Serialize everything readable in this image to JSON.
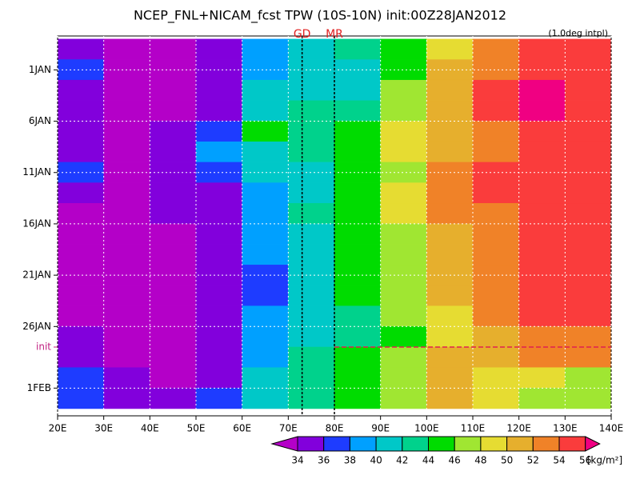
{
  "chart_data": {
    "type": "heatmap",
    "title": "NCEP_FNL+NICAM_fcst TPW (10S-10N) init:00Z28JAN2012",
    "subtitle": "(1.0deg intpl)",
    "x": [
      25,
      35,
      45,
      55,
      65,
      75,
      85,
      95,
      105,
      115,
      125,
      135
    ],
    "y": [
      -2,
      0,
      2,
      4,
      6,
      8,
      10,
      12,
      14,
      16,
      18,
      20,
      22,
      24,
      26,
      28,
      30,
      32
    ],
    "values": [
      [
        35,
        33,
        33,
        34,
        38,
        40,
        42,
        44,
        49,
        52,
        54,
        55
      ],
      [
        37,
        33,
        33,
        35,
        39,
        41,
        40,
        45,
        50,
        53,
        55,
        55
      ],
      [
        35,
        33,
        33,
        35,
        40,
        41,
        41,
        46,
        51,
        54,
        56,
        55
      ],
      [
        34,
        33,
        33,
        35,
        40,
        42,
        42,
        47,
        51,
        54,
        56,
        55
      ],
      [
        34,
        33,
        34,
        37,
        44,
        42,
        44,
        48,
        51,
        53,
        55,
        54
      ],
      [
        35,
        33,
        34,
        38,
        40,
        43,
        45,
        48,
        51,
        53,
        55,
        55
      ],
      [
        36,
        33,
        34,
        36,
        40,
        41,
        44,
        47,
        53,
        55,
        55,
        54
      ],
      [
        34,
        33,
        34,
        35,
        39,
        41,
        44,
        48,
        53,
        54,
        55,
        54
      ],
      [
        33,
        33,
        34,
        35,
        39,
        42,
        45,
        48,
        52,
        53,
        55,
        55
      ],
      [
        33,
        33,
        33,
        34,
        38,
        41,
        45,
        47,
        51,
        53,
        54,
        55
      ],
      [
        33,
        33,
        33,
        34,
        38,
        41,
        44,
        47,
        51,
        53,
        55,
        55
      ],
      [
        33,
        33,
        33,
        34,
        37,
        41,
        44,
        47,
        50,
        53,
        55,
        55
      ],
      [
        33,
        33,
        33,
        34,
        37,
        40,
        44,
        47,
        50,
        52,
        54,
        55
      ],
      [
        33,
        33,
        33,
        34,
        38,
        41,
        43,
        47,
        49,
        52,
        54,
        54
      ],
      [
        34,
        33,
        33,
        34,
        38,
        41,
        42,
        45,
        48,
        51,
        53,
        53
      ],
      [
        34,
        33,
        33,
        35,
        39,
        42,
        44,
        47,
        50,
        51,
        53,
        52
      ],
      [
        36,
        34,
        33,
        35,
        40,
        43,
        44,
        47,
        51,
        49,
        48,
        47
      ],
      [
        37,
        34,
        34,
        36,
        40,
        43,
        44,
        46,
        50,
        49,
        47,
        46
      ]
    ],
    "xlim": [
      20,
      140
    ],
    "xticks": [
      {
        "value": 20,
        "label": "20E"
      },
      {
        "value": 30,
        "label": "30E"
      },
      {
        "value": 40,
        "label": "40E"
      },
      {
        "value": 50,
        "label": "50E"
      },
      {
        "value": 60,
        "label": "60E"
      },
      {
        "value": 70,
        "label": "70E"
      },
      {
        "value": 80,
        "label": "80E"
      },
      {
        "value": 90,
        "label": "90E"
      },
      {
        "value": 100,
        "label": "100E"
      },
      {
        "value": 110,
        "label": "110E"
      },
      {
        "value": 120,
        "label": "120E"
      },
      {
        "value": 130,
        "label": "130E"
      },
      {
        "value": 140,
        "label": "140E"
      }
    ],
    "ylim": [
      -3.3,
      33.7
    ],
    "yticks": [
      {
        "value": 0,
        "label": "1JAN"
      },
      {
        "value": 5,
        "label": "6JAN"
      },
      {
        "value": 10,
        "label": "11JAN"
      },
      {
        "value": 15,
        "label": "16JAN"
      },
      {
        "value": 20,
        "label": "21JAN"
      },
      {
        "value": 25,
        "label": "26JAN"
      },
      {
        "value": 31,
        "label": "1FEB"
      }
    ],
    "init": {
      "value": 27,
      "label": "init"
    },
    "vlines": [
      {
        "value": 73,
        "label": "GD"
      },
      {
        "value": 80,
        "label": "MR"
      }
    ],
    "levels": [
      34,
      36,
      38,
      40,
      42,
      44,
      46,
      48,
      50,
      52,
      54,
      56
    ],
    "colors": [
      "#b400c8",
      "#8200dc",
      "#1e3cff",
      "#00a0ff",
      "#00c8c8",
      "#00d28c",
      "#00dc00",
      "#a0e632",
      "#e6dc32",
      "#e6af2d",
      "#f08228",
      "#fa3c3c",
      "#f00082"
    ],
    "units": "[kg/m²]"
  }
}
